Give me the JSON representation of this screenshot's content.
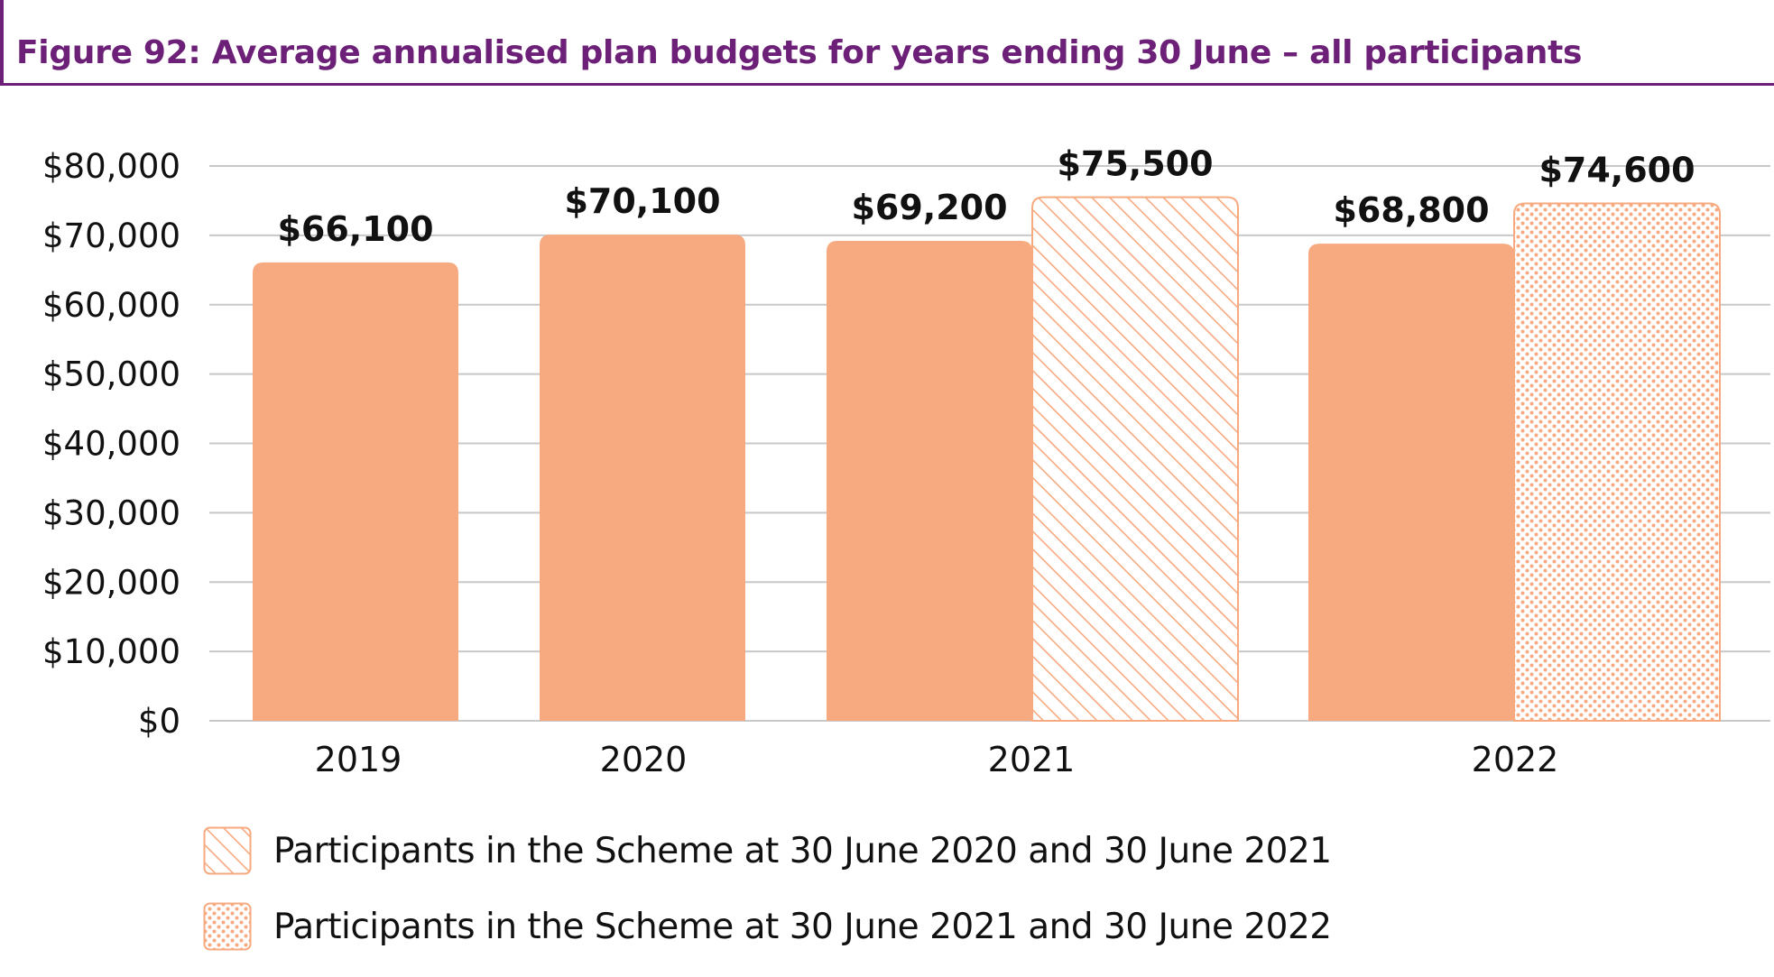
{
  "figure": {
    "title": "Figure 92: Average annualised plan budgets for years ending 30 June – all participants"
  },
  "colors": {
    "title": "#6d2077",
    "bar": "#f7aa80",
    "pattern_stroke": "#f7aa80",
    "grid": "#c8c8c8",
    "text": "#111111"
  },
  "chart_data": {
    "type": "bar",
    "title": "Figure 92: Average annualised plan budgets for years ending 30 June – all participants",
    "categories": [
      "2019",
      "2020",
      "2021",
      "2022"
    ],
    "ylim": [
      0,
      80000
    ],
    "yticks": [
      0,
      10000,
      20000,
      30000,
      40000,
      50000,
      60000,
      70000,
      80000
    ],
    "ytick_labels": [
      "$0",
      "$10,000",
      "$20,000",
      "$30,000",
      "$40,000",
      "$50,000",
      "$60,000",
      "$70,000",
      "$80,000"
    ],
    "grid": true,
    "legend_position": "bottom-left",
    "series": [
      {
        "values": [
          66100,
          70100,
          69200,
          68800
        ],
        "labels": [
          "$66,100",
          "$70,100",
          "$69,200",
          "$68,800"
        ],
        "fill": "solid"
      },
      {
        "name": "Participants in the Scheme at 30 June 2020 and 30 June 2021",
        "values": [
          null,
          null,
          75500,
          null
        ],
        "labels": [
          null,
          null,
          "$75,500",
          null
        ],
        "fill": "hatch"
      },
      {
        "name": "Participants in the Scheme at 30 June 2021 and 30 June 2022",
        "values": [
          null,
          null,
          null,
          74600
        ],
        "labels": [
          null,
          null,
          null,
          "$74,600"
        ],
        "fill": "dots"
      }
    ]
  },
  "legend": {
    "items": [
      {
        "label": "Participants in the Scheme at 30 June 2020 and 30 June 2021",
        "swatch": "hatch"
      },
      {
        "label": "Participants in the Scheme at 30 June 2021 and 30 June 2022",
        "swatch": "dots"
      }
    ]
  }
}
